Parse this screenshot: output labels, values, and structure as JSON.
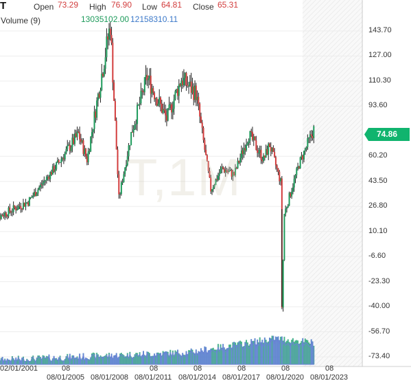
{
  "header": {
    "symbol": "T",
    "open_label": "Open",
    "open_value": "73.29",
    "high_label": "High",
    "high_value": "76.90",
    "low_label": "Low",
    "low_value": "64.81",
    "close_label": "Close",
    "close_value": "65.31",
    "volume_label": "Volume (9)",
    "volume_value_1": "13035102.00",
    "volume_value_2": "12158310.11"
  },
  "watermark": "T,1M",
  "price_tag": "74.86",
  "colors": {
    "up": "#1c9a5a",
    "down": "#d23c3c",
    "volume_green": "#2aa57a",
    "volume_blue": "#4a78c8",
    "price_tag": "#10b46e"
  },
  "chart_data": {
    "type": "candlestick",
    "x_tick_labels": [
      "02/01/2001",
      "08",
      "08/01/2005",
      "08/01/2008",
      "08",
      "08/01/2011",
      "08",
      "08/01/2014",
      "08",
      "08/01/2017",
      "08",
      "08/01/2020",
      "08",
      "08/01/2023"
    ],
    "y_tick_labels": [
      "143.70",
      "127.00",
      "110.30",
      "93.60",
      "60.20",
      "43.50",
      "26.80",
      "10.10",
      "-6.60",
      "-23.30",
      "-40.00",
      "-56.70",
      "-73.40"
    ],
    "ylim": [
      -73.4,
      143.7
    ],
    "last_price": 74.86,
    "key_points": [
      {
        "date": "2000-06",
        "price": 28
      },
      {
        "date": "2001-01",
        "price": 20
      },
      {
        "date": "2003-01",
        "price": 30
      },
      {
        "date": "2005-01",
        "price": 55
      },
      {
        "date": "2006-06",
        "price": 75
      },
      {
        "date": "2007-01",
        "price": 58
      },
      {
        "date": "2008-08",
        "price": 148
      },
      {
        "date": "2009-03",
        "price": 32
      },
      {
        "date": "2010-01",
        "price": 75
      },
      {
        "date": "2011-02",
        "price": 113
      },
      {
        "date": "2012-06",
        "price": 85
      },
      {
        "date": "2013-06",
        "price": 112
      },
      {
        "date": "2014-06",
        "price": 102
      },
      {
        "date": "2015-06",
        "price": 38
      },
      {
        "date": "2016-03",
        "price": 52
      },
      {
        "date": "2017-01",
        "price": 48
      },
      {
        "date": "2018-01",
        "price": 75
      },
      {
        "date": "2019-01",
        "price": 58
      },
      {
        "date": "2019-06",
        "price": 68
      },
      {
        "date": "2020-03",
        "price": 43
      },
      {
        "date": "2020-04",
        "price": -40
      },
      {
        "date": "2020-06",
        "price": 22
      },
      {
        "date": "2021-06",
        "price": 55
      },
      {
        "date": "2022-06",
        "price": 78
      }
    ]
  }
}
